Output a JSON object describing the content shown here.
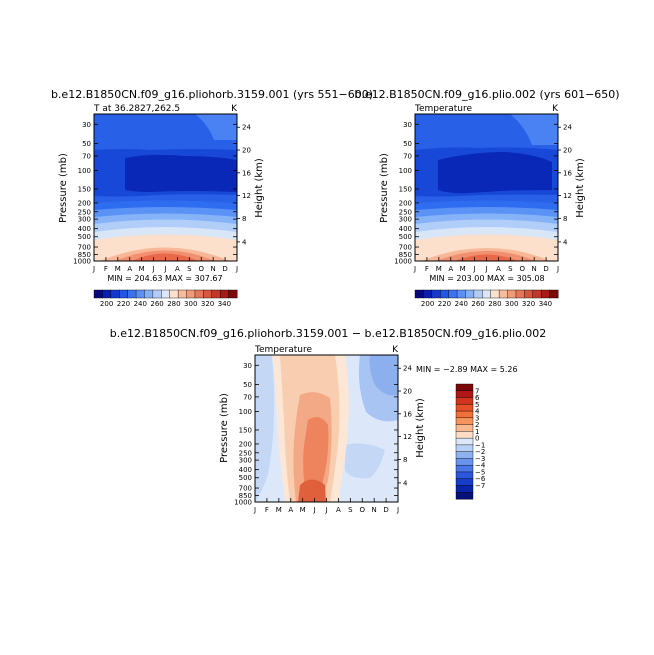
{
  "chart_data": [
    {
      "type": "contour",
      "title": "b.e12.B1850CN.f09_g16.pliohorb.3159.001 (yrs 551−600)",
      "subtitle_left": "T at 36.2827,262.5",
      "subtitle_right": "K",
      "ylabel": "Pressure (mb)",
      "ylabel_right": "Height (km)",
      "x_ticks": [
        "J",
        "F",
        "M",
        "A",
        "M",
        "J",
        "J",
        "A",
        "S",
        "O",
        "N",
        "D",
        "J"
      ],
      "y_ticks": [
        "30",
        "50",
        "70",
        "100",
        "150",
        "200",
        "250",
        "300",
        "400",
        "500",
        "700",
        "850",
        "1000"
      ],
      "y_ticks_right": [
        "24",
        "20",
        "16",
        "12",
        "8",
        "4"
      ],
      "stats": "MIN = 204.63   MAX = 307.67",
      "min": 204.63,
      "max": 307.67,
      "colorbar_labels": [
        "200",
        "220",
        "240",
        "260",
        "280",
        "300",
        "320",
        "340"
      ]
    },
    {
      "type": "contour",
      "title": "b.e12.B1850CN.f09_g16.plio.002 (yrs 601−650)",
      "subtitle_left": "Temperature",
      "subtitle_right": "K",
      "ylabel": "Pressure (mb)",
      "ylabel_right": "Height (km)",
      "x_ticks": [
        "J",
        "F",
        "M",
        "A",
        "M",
        "J",
        "J",
        "A",
        "S",
        "O",
        "N",
        "D",
        "J"
      ],
      "y_ticks": [
        "30",
        "50",
        "70",
        "100",
        "150",
        "200",
        "250",
        "300",
        "400",
        "500",
        "700",
        "850",
        "1000"
      ],
      "y_ticks_right": [
        "24",
        "20",
        "16",
        "12",
        "8",
        "4"
      ],
      "stats": "MIN = 203.00   MAX = 305.08",
      "min": 203.0,
      "max": 305.08,
      "colorbar_labels": [
        "200",
        "220",
        "240",
        "260",
        "280",
        "300",
        "320",
        "340"
      ]
    },
    {
      "type": "contour",
      "title": "b.e12.B1850CN.f09_g16.pliohorb.3159.001 − b.e12.B1850CN.f09_g16.plio.002",
      "subtitle_left": "Temperature",
      "subtitle_right": "K",
      "ylabel": "Pressure (mb)",
      "ylabel_right": "Height (km)",
      "x_ticks": [
        "J",
        "F",
        "M",
        "A",
        "M",
        "J",
        "J",
        "A",
        "S",
        "O",
        "N",
        "D",
        "J"
      ],
      "y_ticks": [
        "30",
        "50",
        "70",
        "100",
        "150",
        "200",
        "250",
        "300",
        "400",
        "500",
        "700",
        "850",
        "1000"
      ],
      "y_ticks_right": [
        "24",
        "20",
        "16",
        "12",
        "8",
        "4"
      ],
      "stats": "MIN =  −2.89  MAX =    5.26",
      "min": -2.89,
      "max": 5.26,
      "colorbar_labels": [
        "7",
        "6",
        "5",
        "4",
        "3",
        "2",
        "1",
        "0",
        "−1",
        "−2",
        "−3",
        "−4",
        "−5",
        "−6",
        "−7"
      ]
    }
  ]
}
